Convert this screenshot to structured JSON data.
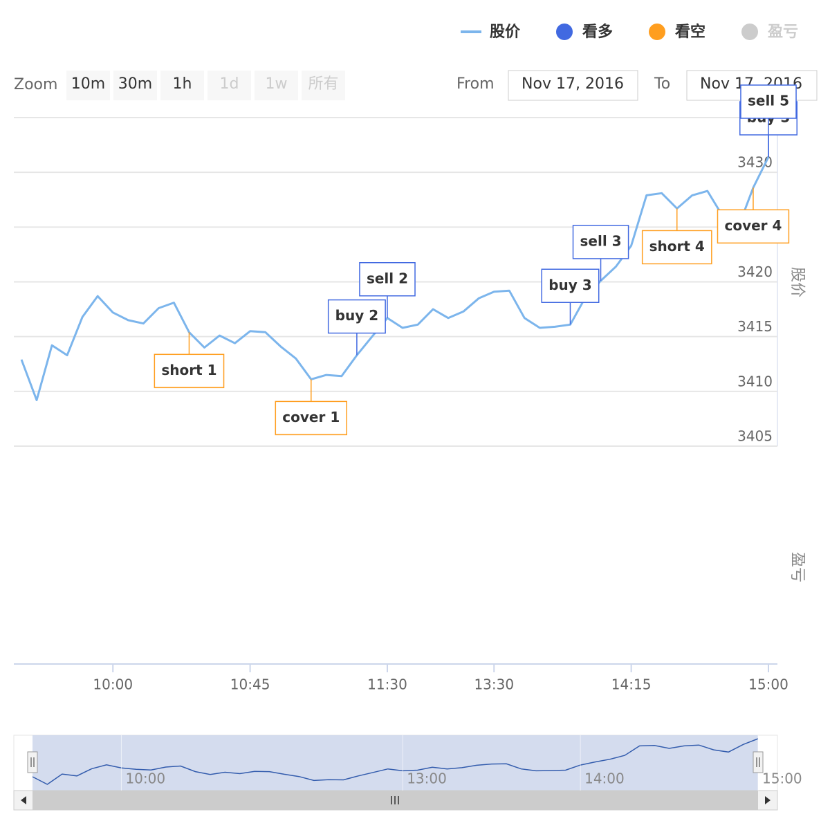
{
  "chart_data": {
    "type": "stock",
    "range_selector": {
      "label": "Zoom",
      "buttons": [
        {
          "text": "10m",
          "enabled": true
        },
        {
          "text": "30m",
          "enabled": true
        },
        {
          "text": "1h",
          "enabled": true
        },
        {
          "text": "1d",
          "enabled": false
        },
        {
          "text": "1w",
          "enabled": false
        },
        {
          "text": "所有",
          "enabled": false
        }
      ]
    },
    "from_label": "From",
    "from": "Nov 17, 2016",
    "to_label": "To",
    "to": "Nov 17, 2016",
    "ylabel": "股价",
    "pnl_label": "盈亏",
    "ylim": [
      3405,
      3435
    ],
    "yticks": [
      3405,
      3410,
      3415,
      3420,
      3425,
      3430
    ],
    "x": [
      "09:30",
      "09:35",
      "09:40",
      "09:45",
      "09:50",
      "09:55",
      "10:00",
      "10:05",
      "10:10",
      "10:15",
      "10:20",
      "10:25",
      "10:30",
      "10:35",
      "10:40",
      "10:45",
      "10:50",
      "10:55",
      "11:00",
      "11:05",
      "11:10",
      "11:15",
      "11:20",
      "11:25",
      "11:30",
      "13:00",
      "13:05",
      "13:10",
      "13:15",
      "13:20",
      "13:25",
      "13:30",
      "13:35",
      "13:40",
      "13:45",
      "13:50",
      "13:55",
      "14:00",
      "14:05",
      "14:10",
      "14:15",
      "14:20",
      "14:25",
      "14:30",
      "14:35",
      "14:40",
      "14:45",
      "14:50",
      "14:55",
      "15:00"
    ],
    "xticks": [
      "10:00",
      "10:45",
      "11:30",
      "13:30",
      "14:15",
      "15:00"
    ],
    "series": [
      {
        "name": "股价",
        "color": "#7cb5ec",
        "values": [
          3412.9,
          3409.2,
          3414.2,
          3413.3,
          3416.8,
          3418.7,
          3417.2,
          3416.5,
          3416.2,
          3417.6,
          3418.1,
          3415.4,
          3414.0,
          3415.1,
          3414.4,
          3415.5,
          3415.4,
          3414.1,
          3413.0,
          3411.1,
          3411.5,
          3411.4,
          3413.3,
          3415.0,
          3416.7,
          3415.8,
          3416.1,
          3417.5,
          3416.7,
          3417.3,
          3418.5,
          3419.1,
          3419.2,
          3416.7,
          3415.8,
          3415.9,
          3416.1,
          3418.6,
          3420.1,
          3421.4,
          3423.3,
          3427.9,
          3428.1,
          3426.7,
          3427.9,
          3428.3,
          3426.0,
          3424.9,
          3428.6,
          3431.4
        ]
      },
      {
        "name": "看多",
        "color": "#4169e1",
        "flags": [
          {
            "x": "11:20",
            "title": "buy 2"
          },
          {
            "x": "11:30",
            "title": "sell 2"
          },
          {
            "x": "13:55",
            "title": "buy 3"
          },
          {
            "x": "14:05",
            "title": "sell 3"
          },
          {
            "x": "15:00",
            "title": "buy 5"
          },
          {
            "x": "15:00",
            "title": "sell 5"
          }
        ]
      },
      {
        "name": "看空",
        "color": "#ff9e1f",
        "flags": [
          {
            "x": "10:25",
            "title": "short 1"
          },
          {
            "x": "11:05",
            "title": "cover 1"
          },
          {
            "x": "14:30",
            "title": "short 4"
          },
          {
            "x": "14:55",
            "title": "cover 4"
          }
        ]
      },
      {
        "name": "盈亏",
        "visible": false
      }
    ],
    "navigator": {
      "xticks": [
        "10:00",
        "13:00",
        "14:00",
        "15:00"
      ]
    }
  }
}
